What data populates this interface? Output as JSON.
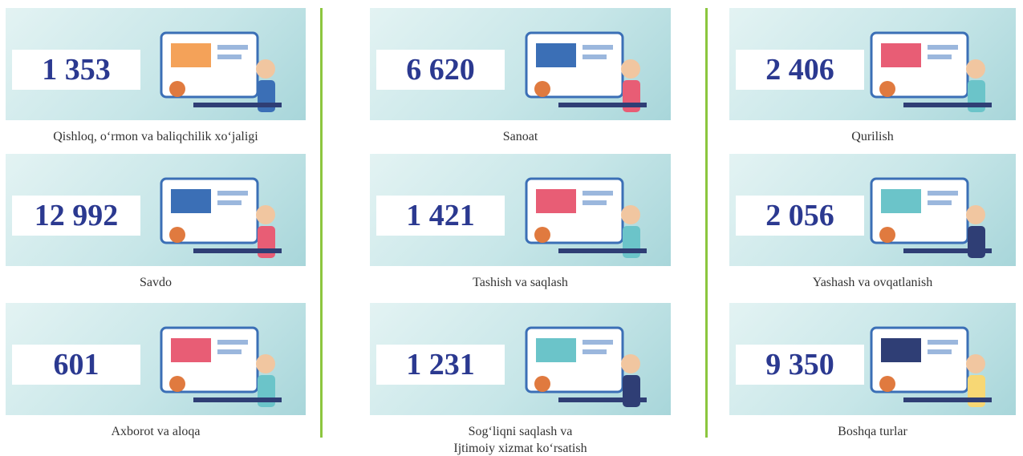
{
  "columns": [
    [
      {
        "value": "1 353",
        "label": [
          "Qishloq, o‘rmon va baliqchilik xo‘jaligi"
        ]
      },
      {
        "value": "12 992",
        "label": [
          "Savdo"
        ]
      },
      {
        "value": "601",
        "label": [
          "Axborot va aloqa"
        ]
      }
    ],
    [
      {
        "value": "6 620",
        "label": [
          "Sanoat"
        ]
      },
      {
        "value": "1 421",
        "label": [
          "Tashish va saqlash"
        ]
      },
      {
        "value": "1 231",
        "label": [
          "Sog‘liqni saqlash va",
          "Ijtimoiy xizmat ko‘rsatish"
        ]
      }
    ],
    [
      {
        "value": "2 406",
        "label": [
          "Qurilish"
        ]
      },
      {
        "value": "2 056",
        "label": [
          "Yashash va ovqatlanish"
        ]
      },
      {
        "value": "9 350",
        "label": [
          "Boshqa turlar"
        ]
      }
    ]
  ]
}
